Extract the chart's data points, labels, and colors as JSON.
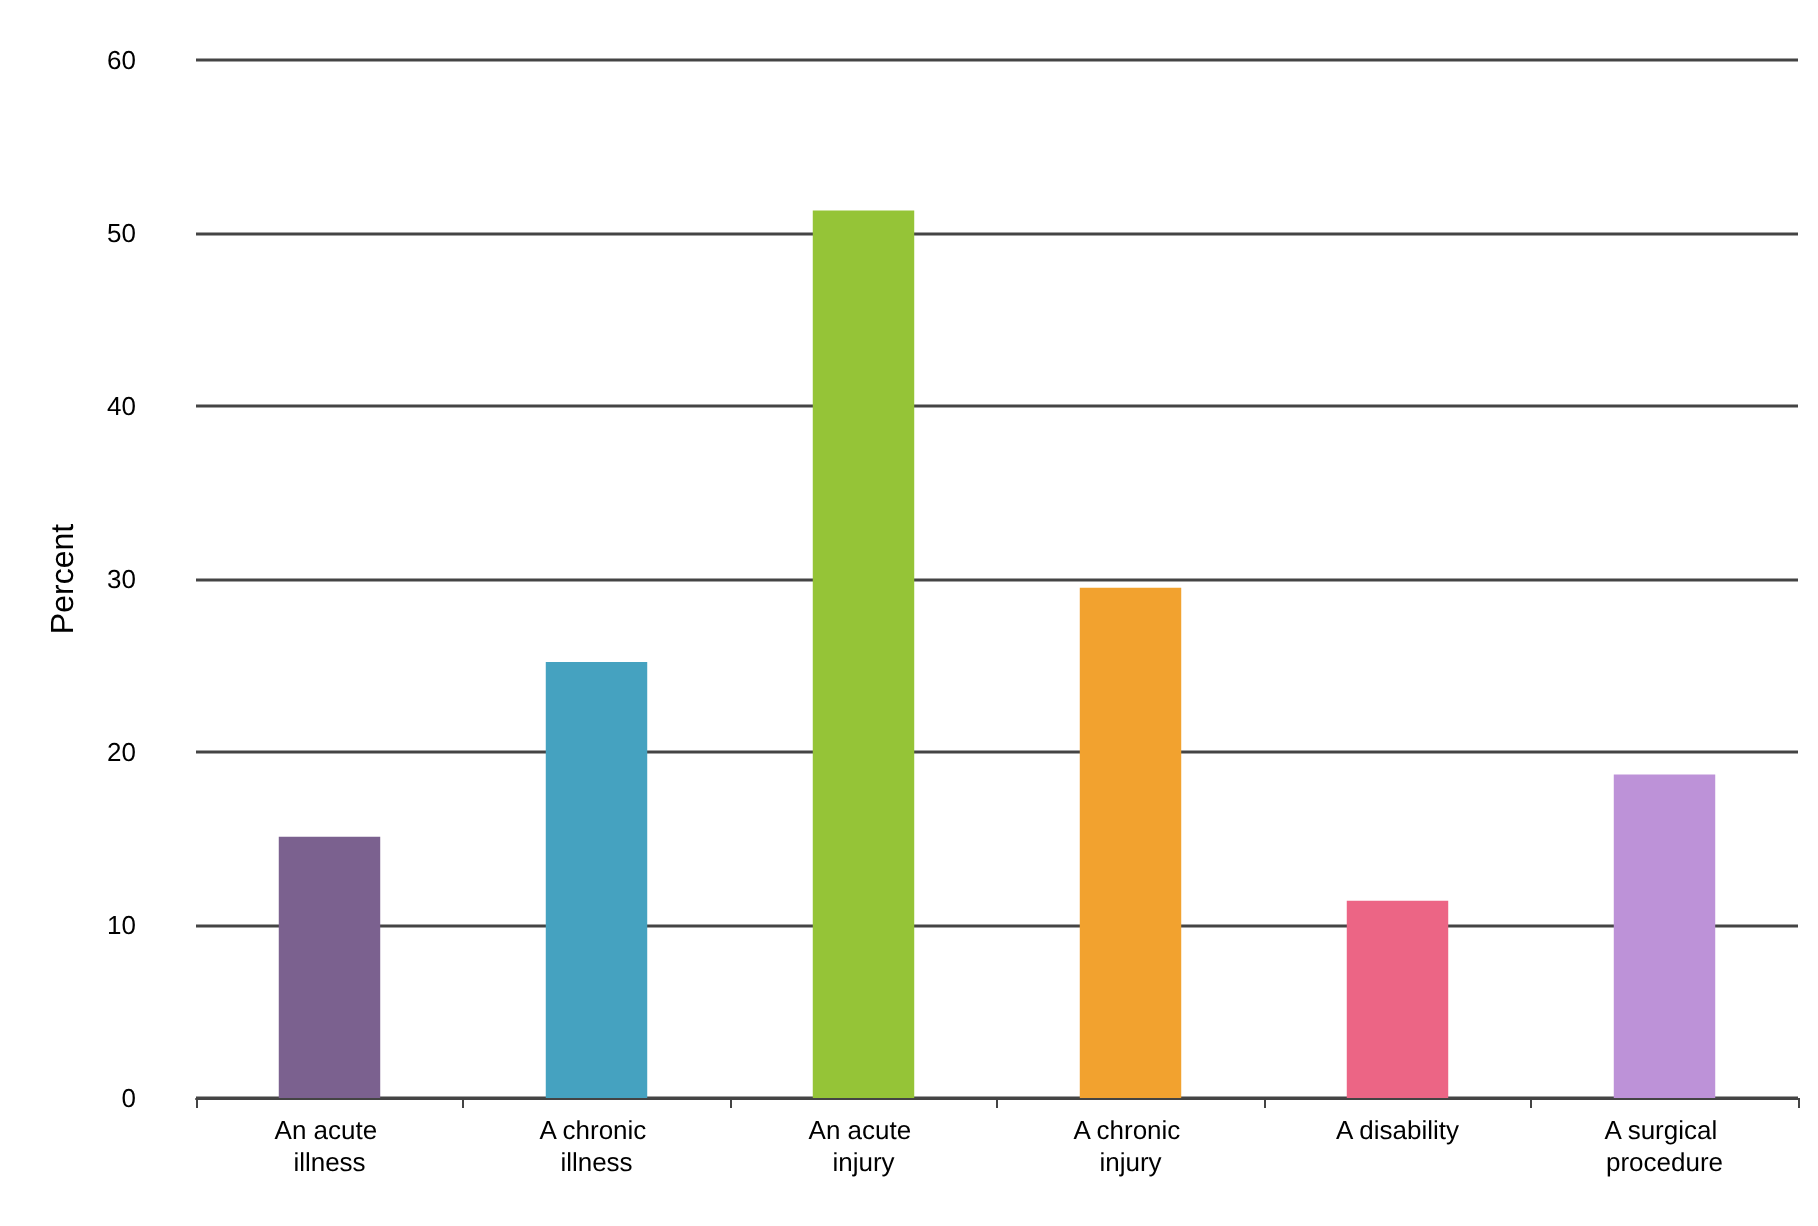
{
  "chart_data": {
    "type": "bar",
    "ylabel": "Percent",
    "categories": [
      "An acute illness",
      "A chronic illness",
      "An acute injury",
      "A chronic injury",
      "A disability",
      "A surgical procedure"
    ],
    "values": [
      15.1,
      25.2,
      51.3,
      29.5,
      11.4,
      18.7
    ],
    "colors": [
      "#7b618f",
      "#45a2c0",
      "#95c437",
      "#f2a22f",
      "#ec6585",
      "#bd92d8"
    ],
    "ylim": [
      0,
      60
    ],
    "yticks": [
      0,
      10,
      20,
      30,
      40,
      50,
      60
    ],
    "grid": "y"
  }
}
